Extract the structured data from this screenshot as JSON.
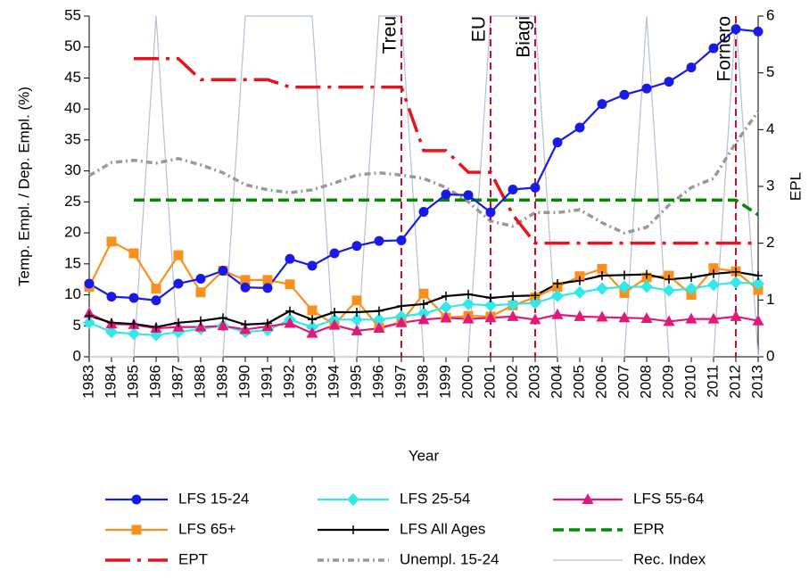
{
  "chart_data": {
    "type": "line",
    "xlabel": "Year",
    "ylabel": "Temp. Empl. / Dep. Empl. (%)",
    "y2label": "EPL",
    "x": [
      1983,
      1984,
      1985,
      1986,
      1987,
      1988,
      1989,
      1990,
      1991,
      1992,
      1993,
      1994,
      1995,
      1996,
      1997,
      1998,
      1999,
      2000,
      2001,
      2002,
      2003,
      2004,
      2005,
      2006,
      2007,
      2008,
      2009,
      2010,
      2011,
      2012,
      2013
    ],
    "xlim": [
      1983,
      2013
    ],
    "xticks": [
      1983,
      1984,
      1985,
      1986,
      1987,
      1988,
      1989,
      1990,
      1991,
      1992,
      1993,
      1994,
      1995,
      1996,
      1997,
      1998,
      1999,
      2000,
      2001,
      2002,
      2003,
      2004,
      2005,
      2006,
      2007,
      2008,
      2009,
      2010,
      2011,
      2012,
      2013
    ],
    "ylim": [
      0,
      55
    ],
    "yticks": [
      0,
      5,
      10,
      15,
      20,
      25,
      30,
      35,
      40,
      45,
      50,
      55
    ],
    "y2lim": [
      0,
      6
    ],
    "y2ticks": [
      0,
      1,
      2,
      3,
      4,
      5,
      6
    ],
    "series": [
      {
        "name": "LFS 15-24",
        "color": "#1a1ae6",
        "marker": "circle",
        "dash": "solid",
        "values": [
          11.8,
          9.7,
          9.5,
          9.1,
          11.8,
          12.6,
          13.9,
          11.2,
          11.1,
          15.8,
          14.7,
          16.7,
          17.9,
          18.7,
          18.8,
          23.4,
          26.2,
          26.1,
          23.3,
          27.0,
          27.3,
          34.6,
          37.0,
          40.8,
          42.3,
          43.3,
          44.4,
          46.7,
          49.8,
          52.9,
          52.5
        ]
      },
      {
        "name": "LFS 25-54",
        "color": "#33e8e8",
        "marker": "diamond",
        "dash": "solid",
        "values": [
          5.5,
          4.0,
          3.7,
          3.5,
          4.0,
          4.5,
          5.0,
          4.0,
          4.3,
          6.0,
          4.8,
          6.0,
          6.0,
          6.0,
          6.5,
          7.0,
          8.0,
          8.5,
          8.3,
          8.5,
          8.7,
          9.8,
          10.4,
          11.0,
          11.3,
          11.3,
          10.7,
          11.0,
          11.6,
          12.0,
          11.8
        ]
      },
      {
        "name": "LFS 55-64",
        "color": "#e0197a",
        "marker": "triangle",
        "dash": "solid",
        "values": [
          7.0,
          5.3,
          5.2,
          4.6,
          4.8,
          4.8,
          5.0,
          4.4,
          4.9,
          5.4,
          3.8,
          5.1,
          4.2,
          4.6,
          5.5,
          6.0,
          6.3,
          6.1,
          6.3,
          6.5,
          6.0,
          6.8,
          6.5,
          6.4,
          6.3,
          6.2,
          5.7,
          6.1,
          6.1,
          6.5,
          5.8
        ]
      },
      {
        "name": "LFS 65+",
        "color": "#f7901e",
        "marker": "square",
        "dash": "solid",
        "values": [
          11.3,
          18.6,
          16.7,
          11.0,
          16.4,
          10.4,
          13.9,
          12.4,
          12.4,
          11.7,
          7.5,
          5.2,
          9.1,
          4.7,
          5.6,
          10.2,
          6.3,
          6.6,
          6.5,
          8.3,
          9.6,
          11.3,
          13.0,
          14.2,
          10.3,
          12.8,
          13.1,
          10.0,
          14.3,
          13.8,
          10.8
        ]
      },
      {
        "name": "LFS All Ages",
        "color": "#000000",
        "marker": "plus",
        "dash": "solid",
        "values": [
          6.6,
          5.5,
          5.3,
          4.8,
          5.5,
          5.8,
          6.3,
          5.2,
          5.4,
          7.4,
          6.0,
          7.2,
          7.2,
          7.4,
          8.2,
          8.5,
          9.8,
          10.1,
          9.5,
          9.8,
          9.9,
          11.8,
          12.3,
          13.1,
          13.2,
          13.3,
          12.5,
          12.8,
          13.4,
          13.7,
          13.1
        ]
      },
      {
        "name": "EPR",
        "color": "#008c00",
        "marker": "none",
        "dash": "dash",
        "axis": "y2",
        "values": [
          null,
          null,
          2.76,
          2.76,
          2.76,
          2.76,
          2.76,
          2.76,
          2.76,
          2.76,
          2.76,
          2.76,
          2.76,
          2.76,
          2.76,
          2.76,
          2.76,
          2.76,
          2.76,
          2.76,
          2.76,
          2.76,
          2.76,
          2.76,
          2.76,
          2.76,
          2.76,
          2.76,
          2.76,
          2.76,
          2.5
        ]
      },
      {
        "name": "EPT",
        "color": "#e8141c",
        "marker": "none",
        "dash": "longdashdot",
        "axis": "y2",
        "values": [
          null,
          null,
          5.25,
          5.25,
          5.25,
          4.88,
          4.88,
          4.88,
          4.88,
          4.75,
          4.75,
          4.75,
          4.75,
          4.75,
          4.75,
          3.63,
          3.63,
          3.25,
          3.25,
          2.5,
          2.0,
          2.0,
          2.0,
          2.0,
          2.0,
          2.0,
          2.0,
          2.0,
          2.0,
          2.0,
          2.0
        ]
      },
      {
        "name": "Unempl. 15-24",
        "color": "#999999",
        "marker": "none",
        "dash": "dashdot",
        "axis": "y2",
        "values": [
          3.19,
          3.42,
          3.46,
          3.41,
          3.49,
          3.38,
          3.24,
          3.03,
          2.94,
          2.89,
          2.94,
          3.06,
          3.2,
          3.24,
          3.2,
          3.14,
          2.98,
          2.73,
          2.39,
          2.3,
          2.54,
          2.54,
          2.59,
          2.36,
          2.18,
          2.28,
          2.67,
          2.98,
          3.14,
          3.77,
          4.32
        ]
      },
      {
        "name": "Rec. Index",
        "color": "#b4c0d4",
        "marker": "none",
        "dash": "solid",
        "axis": "y2",
        "values": [
          0,
          0,
          0,
          6,
          0,
          0,
          0,
          6,
          6,
          6,
          6,
          0,
          0,
          6,
          6,
          0,
          0,
          0,
          6,
          6,
          6,
          0,
          0,
          0,
          0,
          6,
          0,
          0,
          0,
          6,
          0
        ]
      }
    ],
    "annotations": [
      {
        "x": 1997,
        "label": "Treu"
      },
      {
        "x": 2001,
        "label": "EU"
      },
      {
        "x": 2003,
        "label": "Biagi"
      },
      {
        "x": 2012,
        "label": "Fornero"
      }
    ],
    "annotation_color": "#c8102e"
  }
}
